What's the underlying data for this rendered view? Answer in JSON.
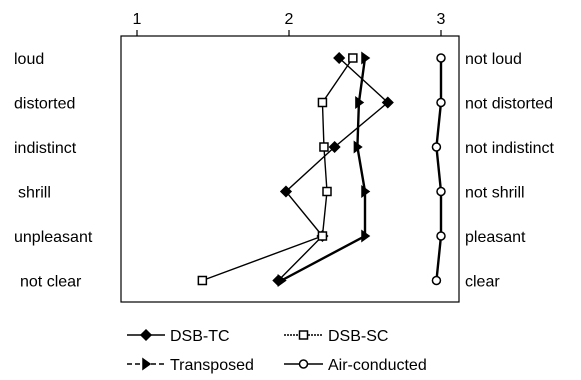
{
  "chart_data": {
    "type": "line",
    "orientation": "horizontal-profile",
    "x_ticks": [
      1,
      2,
      3
    ],
    "xlim": [
      0.9,
      3.05
    ],
    "left_labels": [
      "loud",
      "distorted",
      "indistinct",
      "shrill",
      "unpleasant",
      "not clear"
    ],
    "right_labels": [
      "not loud",
      "not distorted",
      "not indistinct",
      "not shrill",
      "pleasant",
      "clear"
    ],
    "series": [
      {
        "name": "DSB-TC",
        "marker": "filled-diamond",
        "line": "solid",
        "values": [
          2.33,
          2.65,
          2.3,
          1.98,
          2.22,
          1.93
        ]
      },
      {
        "name": "DSB-SC",
        "marker": "open-square",
        "line": "solid",
        "values": [
          2.42,
          2.22,
          2.23,
          2.25,
          2.22,
          1.43
        ]
      },
      {
        "name": "Transposed",
        "marker": "filled-triangle",
        "line": "dashed",
        "values": [
          2.5,
          2.46,
          2.45,
          2.5,
          2.5,
          1.95
        ]
      },
      {
        "name": "Air-conducted",
        "marker": "open-circle",
        "line": "solid",
        "values": [
          3.0,
          3.0,
          2.97,
          3.0,
          3.0,
          2.97
        ]
      }
    ],
    "legend_position": "bottom"
  }
}
